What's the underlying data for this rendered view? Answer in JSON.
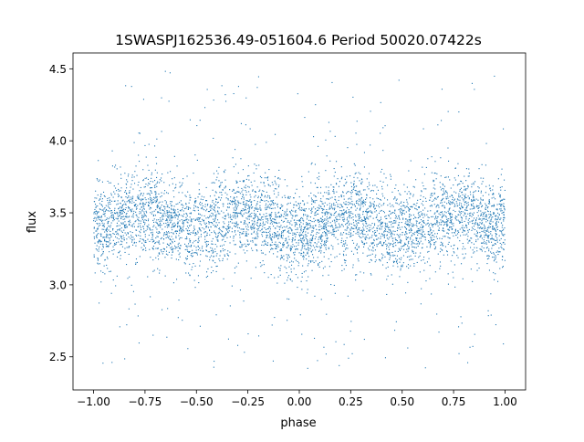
{
  "chart_data": {
    "type": "scatter",
    "title": "1SWASPJ162536.49-051604.6 Period 50020.07422s",
    "xlabel": "phase",
    "ylabel": "flux",
    "xlim": [
      -1.1,
      1.1
    ],
    "ylim": [
      2.27,
      4.61
    ],
    "xticks": [
      -1.0,
      -0.75,
      -0.5,
      -0.25,
      0.0,
      0.25,
      0.5,
      0.75,
      1.0
    ],
    "xtick_labels": [
      "−1.00",
      "−0.75",
      "−0.50",
      "−0.25",
      "0.00",
      "0.25",
      "0.50",
      "0.75",
      "1.00"
    ],
    "yticks": [
      2.5,
      3.0,
      3.5,
      4.0,
      4.5
    ],
    "ytick_labels": [
      "2.5",
      "3.0",
      "3.5",
      "4.0",
      "4.5"
    ],
    "grid": false,
    "point_color": "#1f77b4",
    "phase_range": [
      -1.0,
      1.0
    ],
    "flux_envelope": [
      2.4,
      4.5
    ],
    "trend": {
      "phase": [
        -1.0,
        -0.75,
        -0.5,
        -0.25,
        0.0,
        0.25,
        0.5,
        0.75,
        1.0
      ],
      "flux": [
        3.4,
        3.49,
        3.38,
        3.49,
        3.36,
        3.49,
        3.38,
        3.49,
        3.4
      ]
    },
    "scatter_sd": 0.15
  }
}
